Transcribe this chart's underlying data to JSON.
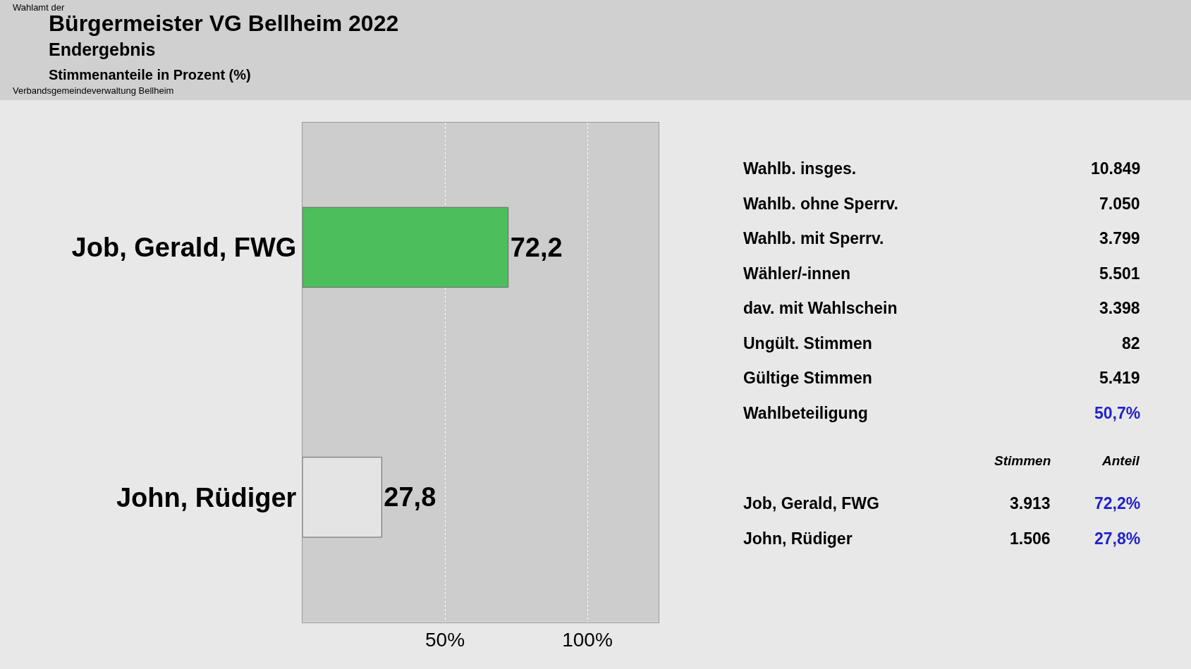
{
  "chart_data": [
    {
      "type": "bar",
      "title": "Bürgermeister VG Bellheim 2022",
      "subtitle": "Endergebnis",
      "annotations": [
        "Wahlamt der",
        "Stimmenanteile in Prozent (%)",
        "Verbandsgemeindeverwaltung Bellheim"
      ],
      "orientation": "horizontal",
      "categories": [
        "Job, Gerald, FWG",
        "John, Rüdiger"
      ],
      "values": [
        72.2,
        27.8
      ],
      "value_labels": [
        "72,2",
        "27,8"
      ],
      "colors": [
        "#4cbf5c",
        "#e4e4e4"
      ],
      "xlim": [
        0,
        125
      ],
      "xticks": [
        {
          "value": 50,
          "label": "50%"
        },
        {
          "value": 100,
          "label": "100%"
        }
      ],
      "grid": "x"
    },
    {
      "type": "other",
      "categories": [
        "Wahlb. insges.",
        "Wahlb. ohne Sperrv.",
        "Wahlb. mit Sperrv.",
        "Wähler/-innen",
        "dav. mit Wahlschein",
        "Ungült. Stimmen",
        "Gültige Stimmen",
        "Wahlbeteiligung"
      ],
      "value_labels": [
        "10.849",
        "7.050",
        "3.799",
        "5.501",
        "3.398",
        "82",
        "5.419",
        "50,7%"
      ],
      "colors": [
        "#000000",
        "#000000",
        "#000000",
        "#000000",
        "#000000",
        "#000000",
        "#000000",
        "#2222cc"
      ]
    },
    {
      "type": "other",
      "categories": [
        "Job, Gerald, FWG",
        "John, Rüdiger"
      ],
      "series": [
        {
          "name": "Stimmen",
          "colors": [
            "#000000",
            "#000000"
          ],
          "values": [
            3913,
            1506
          ],
          "value_labels": [
            "3.913",
            "1.506"
          ]
        },
        {
          "name": "Anteil",
          "colors": [
            "#2222cc",
            "#2222cc"
          ],
          "values": [
            72.2,
            27.8
          ],
          "value_labels": [
            "72,2%",
            "27,8%"
          ]
        }
      ]
    }
  ]
}
